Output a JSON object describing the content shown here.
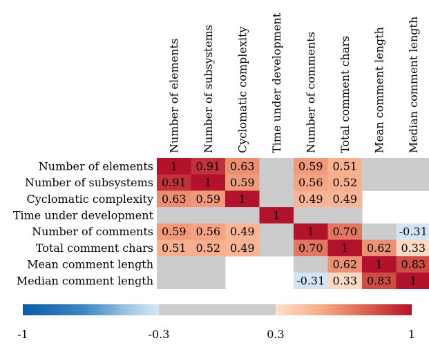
{
  "chart_data": {
    "type": "heatmap",
    "title": "",
    "categories": [
      "Number of elements",
      "Number of subsystems",
      "Cyclomatic complexity",
      "Time under development",
      "Number of comments",
      "Total comment chars",
      "Mean comment length",
      "Median comment length"
    ],
    "x_categories": [
      "Number of elements",
      "Number of subsystems",
      "Cyclomatic complexity",
      "Time under development",
      "Number of comments",
      "Total comment chars",
      "Mean comment length",
      "Median comment length"
    ],
    "y_categories": [
      "Number of elements",
      "Number of subsystems",
      "Cyclomatic complexity",
      "Time under development",
      "Number of comments",
      "Total comment chars",
      "Mean comment length",
      "Median comment length"
    ],
    "values": [
      [
        1,
        0.91,
        0.63,
        null,
        0.59,
        0.51,
        null,
        null
      ],
      [
        0.91,
        1,
        0.59,
        null,
        0.56,
        0.52,
        null,
        null
      ],
      [
        0.63,
        0.59,
        1,
        null,
        0.49,
        0.49,
        null,
        null
      ],
      [
        null,
        null,
        null,
        1,
        null,
        null,
        null,
        null
      ],
      [
        0.59,
        0.56,
        0.49,
        null,
        1,
        0.7,
        null,
        -0.31
      ],
      [
        0.51,
        0.52,
        0.49,
        null,
        0.7,
        1,
        0.62,
        0.33
      ],
      [
        null,
        null,
        null,
        null,
        null,
        0.62,
        1,
        0.83
      ],
      [
        null,
        null,
        null,
        null,
        -0.31,
        0.33,
        0.83,
        1
      ]
    ],
    "cell_labels": [
      [
        "1",
        "0.91",
        "0.63",
        "",
        "0.59",
        "0.51",
        "",
        ""
      ],
      [
        "0.91",
        "1",
        "0.59",
        "",
        "0.56",
        "0.52",
        "",
        ""
      ],
      [
        "0.63",
        "0.59",
        "1",
        "",
        "0.49",
        "0.49",
        "",
        ""
      ],
      [
        "",
        "",
        "",
        "1",
        "",
        "",
        "",
        ""
      ],
      [
        "0.59",
        "0.56",
        "0.49",
        "",
        "1",
        "0.70",
        "",
        "-0.31"
      ],
      [
        "0.51",
        "0.52",
        "0.49",
        "",
        "0.70",
        "1",
        "0.62",
        "0.33"
      ],
      [
        "",
        "",
        "",
        "",
        "",
        "0.62",
        "1",
        "0.83"
      ],
      [
        "",
        "",
        "",
        "",
        "-0.31",
        "0.33",
        "0.83",
        "1"
      ]
    ],
    "gray_cells": [
      [
        0,
        3
      ],
      [
        0,
        6
      ],
      [
        0,
        7
      ],
      [
        1,
        3
      ],
      [
        1,
        6
      ],
      [
        1,
        7
      ],
      [
        2,
        3
      ],
      [
        3,
        0
      ],
      [
        3,
        1
      ],
      [
        3,
        2
      ],
      [
        3,
        4
      ],
      [
        3,
        5
      ],
      [
        4,
        3
      ],
      [
        4,
        6
      ],
      [
        5,
        3
      ],
      [
        6,
        0
      ],
      [
        6,
        1
      ],
      [
        6,
        4
      ],
      [
        7,
        0
      ],
      [
        7,
        1
      ]
    ],
    "colorbar": {
      "range": [
        -1,
        1
      ],
      "ticks": [
        -1,
        -0.3,
        0.3,
        1
      ],
      "tick_labels": [
        "-1",
        "-0.3",
        "0.3",
        "1"
      ],
      "neutral_band": [
        -0.3,
        0.3
      ]
    },
    "colors": {
      "neutral_gray": "#cccccc",
      "negative_strong": "#0a5ba8",
      "negative_mid": "#5e9fcf",
      "negative_weak": "#d6e7f3",
      "positive_weak": "#fde0cd",
      "positive_mid": "#f3a382",
      "positive_strong": "#b2122b"
    }
  }
}
